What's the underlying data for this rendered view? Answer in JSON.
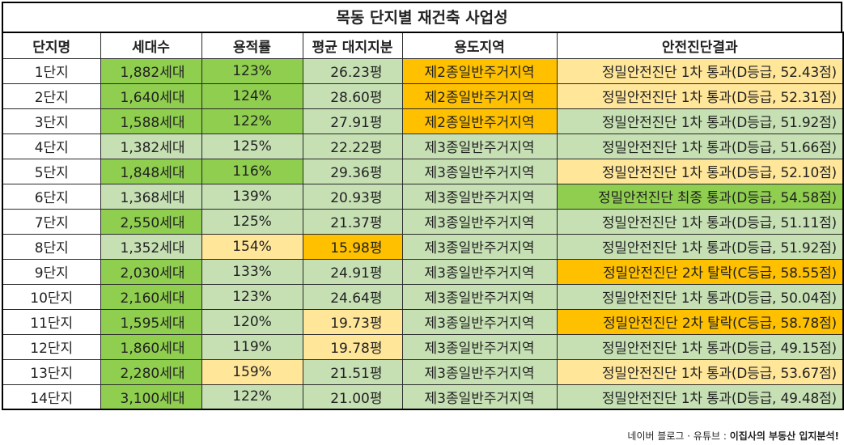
{
  "title": "목동 단지별 재건축 사업성",
  "headers": [
    "단지명",
    "세대수",
    "용적률",
    "평균 대지지분",
    "용도지역",
    "안전진단결과"
  ],
  "colors": {
    "green": "#8fce4f",
    "light_green": "#c6e0b4",
    "light_yellow": "#ffe699",
    "orange": "#ffc000"
  },
  "rows": [
    {
      "name": "1단지",
      "units": "1,882세대",
      "far": "123%",
      "land": "26.23평",
      "zone": "제2종일반주거지역",
      "result": "정밀안전진단 1차 통과(D등급, 52.43점)"
    },
    {
      "name": "2단지",
      "units": "1,640세대",
      "far": "124%",
      "land": "28.60평",
      "zone": "제2종일반주거지역",
      "result": "정밀안전진단 1차 통과(D등급, 52.31점)"
    },
    {
      "name": "3단지",
      "units": "1,588세대",
      "far": "122%",
      "land": "27.91평",
      "zone": "제2종일반주거지역",
      "result": "정밀안전진단 1차 통과(D등급, 51.92점)"
    },
    {
      "name": "4단지",
      "units": "1,382세대",
      "far": "125%",
      "land": "22.22평",
      "zone": "제3종일반주거지역",
      "result": "정밀안전진단 1차 통과(D등급, 51.66점)"
    },
    {
      "name": "5단지",
      "units": "1,848세대",
      "far": "116%",
      "land": "29.36평",
      "zone": "제3종일반주거지역",
      "result": "정밀안전진단 1차 통과(D등급, 52.10점)"
    },
    {
      "name": "6단지",
      "units": "1,368세대",
      "far": "139%",
      "land": "20.93평",
      "zone": "제3종일반주거지역",
      "result": "정밀안전진단 최종 통과(D등급, 54.58점)"
    },
    {
      "name": "7단지",
      "units": "2,550세대",
      "far": "125%",
      "land": "21.37평",
      "zone": "제3종일반주거지역",
      "result": "정밀안전진단 1차 통과(D등급, 51.11점)"
    },
    {
      "name": "8단지",
      "units": "1,352세대",
      "far": "154%",
      "land": "15.98평",
      "zone": "제3종일반주거지역",
      "result": "정밀안전진단 1차 통과(D등급, 51.92점)"
    },
    {
      "name": "9단지",
      "units": "2,030세대",
      "far": "133%",
      "land": "24.91평",
      "zone": "제3종일반주거지역",
      "result": "정밀안전진단 2차 탈락(C등급, 58.55점)"
    },
    {
      "name": "10단지",
      "units": "2,160세대",
      "far": "123%",
      "land": "24.64평",
      "zone": "제3종일반주거지역",
      "result": "정밀안전진단 1차 통과(D등급, 50.04점)"
    },
    {
      "name": "11단지",
      "units": "1,595세대",
      "far": "120%",
      "land": "19.73평",
      "zone": "제3종일반주거지역",
      "result": "정밀안전진단 2차 탈락(C등급, 58.78점)"
    },
    {
      "name": "12단지",
      "units": "1,860세대",
      "far": "119%",
      "land": "19.78평",
      "zone": "제3종일반주거지역",
      "result": "정밀안전진단 1차 통과(D등급, 49.15점)"
    },
    {
      "name": "13단지",
      "units": "2,280세대",
      "far": "159%",
      "land": "21.51평",
      "zone": "제3종일반주거지역",
      "result": "정밀안전진단 1차 통과(D등급, 53.67점)"
    },
    {
      "name": "14단지",
      "units": "3,100세대",
      "far": "122%",
      "land": "21.00평",
      "zone": "제3종일반주거지역",
      "result": "정밀안전진단 1차 통과(D등급, 49.48점)"
    }
  ],
  "footer": {
    "source": "네이버 블로그 · 유튜브 : ",
    "brand": "이집사의 부동산 입지분석!"
  }
}
